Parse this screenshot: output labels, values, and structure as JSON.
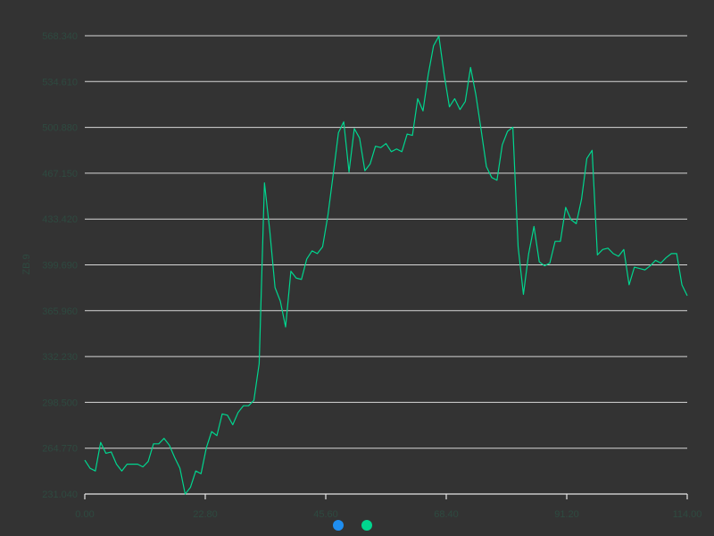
{
  "chart_data": {
    "type": "line",
    "title": "",
    "xlabel": "",
    "ylabel": "ZB.9",
    "xlim": [
      0,
      114
    ],
    "ylim": [
      231.04,
      568.34
    ],
    "y_ticks": [
      "231.040",
      "264.770",
      "298.500",
      "332.230",
      "365.960",
      "399.690",
      "433.420",
      "467.150",
      "500.880",
      "534.610",
      "568.340"
    ],
    "x_ticks": [
      "0.00",
      "22.80",
      "45.60",
      "68.40",
      "91.20",
      "114.00"
    ],
    "grid": true,
    "legend_position": "bottom",
    "series": [
      {
        "name": "",
        "color": "#1f8ef1",
        "values": []
      },
      {
        "name": "",
        "color": "#00d68f",
        "values": [
          256,
          250,
          248,
          269,
          261,
          262,
          253,
          248,
          253,
          253,
          253,
          251,
          255,
          268,
          268,
          272,
          267,
          258,
          250,
          231,
          236,
          248,
          246,
          265,
          277,
          274,
          290,
          289,
          282,
          291,
          296,
          296,
          300,
          327,
          460,
          425,
          383,
          373,
          354,
          395,
          390,
          389,
          404,
          410,
          408,
          413,
          436,
          466,
          497,
          505,
          468,
          500,
          493,
          469,
          474,
          487,
          486,
          489,
          483,
          485,
          483,
          496,
          495,
          522,
          513,
          540,
          561,
          568,
          540,
          516,
          522,
          514,
          520,
          545,
          525,
          499,
          472,
          464,
          462,
          488,
          498,
          501,
          413,
          378,
          408,
          428,
          402,
          399,
          401,
          417,
          417,
          442,
          433,
          430,
          448,
          478,
          484,
          407,
          411,
          412,
          408,
          406,
          411,
          385,
          398,
          397,
          396,
          399,
          403,
          401,
          405,
          408,
          408,
          385,
          377
        ]
      }
    ]
  }
}
